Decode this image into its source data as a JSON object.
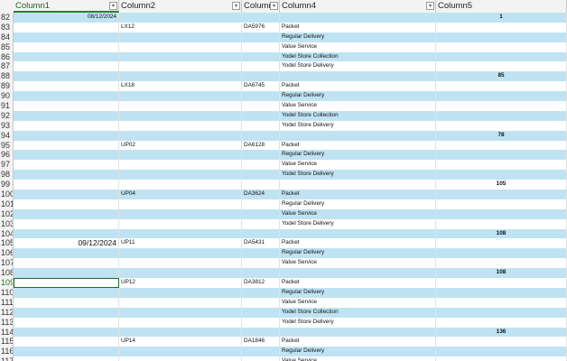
{
  "columns": [
    {
      "label": "Column1"
    },
    {
      "label": "Column2"
    },
    {
      "label": "Column"
    },
    {
      "label": "Column4"
    },
    {
      "label": "Column5"
    }
  ],
  "rows": [
    {
      "n": "82",
      "c1": "08/12/2024",
      "c2": "",
      "c3": "",
      "c4": "",
      "c5": "1",
      "band": true
    },
    {
      "n": "83",
      "c1": "",
      "c2": "LX12",
      "c3": "DA5976",
      "c4": "Packet",
      "c5": "",
      "band": false
    },
    {
      "n": "84",
      "c1": "",
      "c2": "",
      "c3": "",
      "c4": "Regular Delivery",
      "c5": "",
      "band": true
    },
    {
      "n": "85",
      "c1": "",
      "c2": "",
      "c3": "",
      "c4": "Value Service",
      "c5": "",
      "band": false
    },
    {
      "n": "86",
      "c1": "",
      "c2": "",
      "c3": "",
      "c4": "Yodel Store Collection",
      "c5": "",
      "band": true
    },
    {
      "n": "87",
      "c1": "",
      "c2": "",
      "c3": "",
      "c4": "Yodel Store Delivery",
      "c5": "",
      "band": false
    },
    {
      "n": "88",
      "c1": "",
      "c2": "",
      "c3": "",
      "c4": "",
      "c5": "85",
      "band": true
    },
    {
      "n": "89",
      "c1": "",
      "c2": "LX18",
      "c3": "DA6745",
      "c4": "Packet",
      "c5": "",
      "band": false
    },
    {
      "n": "90",
      "c1": "",
      "c2": "",
      "c3": "",
      "c4": "Regular Delivery",
      "c5": "",
      "band": true
    },
    {
      "n": "91",
      "c1": "",
      "c2": "",
      "c3": "",
      "c4": "Value Service",
      "c5": "",
      "band": false
    },
    {
      "n": "92",
      "c1": "",
      "c2": "",
      "c3": "",
      "c4": "Yodel Store Collection",
      "c5": "",
      "band": true
    },
    {
      "n": "93",
      "c1": "",
      "c2": "",
      "c3": "",
      "c4": "Yodel Store Delivery",
      "c5": "",
      "band": false
    },
    {
      "n": "94",
      "c1": "",
      "c2": "",
      "c3": "",
      "c4": "",
      "c5": "78",
      "band": true
    },
    {
      "n": "95",
      "c1": "",
      "c2": "UP02",
      "c3": "DA6128",
      "c4": "Packet",
      "c5": "",
      "band": false
    },
    {
      "n": "96",
      "c1": "",
      "c2": "",
      "c3": "",
      "c4": "Regular Delivery",
      "c5": "",
      "band": true
    },
    {
      "n": "97",
      "c1": "",
      "c2": "",
      "c3": "",
      "c4": "Value Service",
      "c5": "",
      "band": false
    },
    {
      "n": "98",
      "c1": "",
      "c2": "",
      "c3": "",
      "c4": "Yodel Store Delivery",
      "c5": "",
      "band": true
    },
    {
      "n": "99",
      "c1": "",
      "c2": "",
      "c3": "",
      "c4": "",
      "c5": "105",
      "band": false
    },
    {
      "n": "100",
      "c1": "",
      "c2": "UP04",
      "c3": "DA3624",
      "c4": "Packet",
      "c5": "",
      "band": true
    },
    {
      "n": "101",
      "c1": "",
      "c2": "",
      "c3": "",
      "c4": "Regular Delivery",
      "c5": "",
      "band": false
    },
    {
      "n": "102",
      "c1": "",
      "c2": "",
      "c3": "",
      "c4": "Value Service",
      "c5": "",
      "band": true
    },
    {
      "n": "103",
      "c1": "",
      "c2": "",
      "c3": "",
      "c4": "Yodel Store Delivery",
      "c5": "",
      "band": false
    },
    {
      "n": "104",
      "c1": "",
      "c2": "",
      "c3": "",
      "c4": "",
      "c5": "108",
      "band": true
    },
    {
      "n": "105",
      "c1": "09/12/2024",
      "c2": "UP11",
      "c3": "DA5431",
      "c4": "Packet",
      "c5": "",
      "band": false,
      "bigdate": true
    },
    {
      "n": "106",
      "c1": "",
      "c2": "",
      "c3": "",
      "c4": "Regular Delivery",
      "c5": "",
      "band": true
    },
    {
      "n": "107",
      "c1": "",
      "c2": "",
      "c3": "",
      "c4": "Value Service",
      "c5": "",
      "band": false
    },
    {
      "n": "108",
      "c1": "",
      "c2": "",
      "c3": "",
      "c4": "",
      "c5": "108",
      "band": true
    },
    {
      "n": "109",
      "c1": "",
      "c2": "UP12",
      "c3": "DA3812",
      "c4": "Packet",
      "c5": "",
      "band": false,
      "selected": true
    },
    {
      "n": "110",
      "c1": "",
      "c2": "",
      "c3": "",
      "c4": "Regular Delivery",
      "c5": "",
      "band": true
    },
    {
      "n": "111",
      "c1": "",
      "c2": "",
      "c3": "",
      "c4": "Value Service",
      "c5": "",
      "band": false
    },
    {
      "n": "112",
      "c1": "",
      "c2": "",
      "c3": "",
      "c4": "Yodel Store Collection",
      "c5": "",
      "band": true
    },
    {
      "n": "113",
      "c1": "",
      "c2": "",
      "c3": "",
      "c4": "Yodel Store Delivery",
      "c5": "",
      "band": false
    },
    {
      "n": "114",
      "c1": "",
      "c2": "",
      "c3": "",
      "c4": "",
      "c5": "136",
      "band": true
    },
    {
      "n": "115",
      "c1": "",
      "c2": "UP14",
      "c3": "DA1846",
      "c4": "Packet",
      "c5": "",
      "band": false
    },
    {
      "n": "116",
      "c1": "",
      "c2": "",
      "c3": "",
      "c4": "Regular Delivery",
      "c5": "",
      "band": true
    },
    {
      "n": "117",
      "c1": "",
      "c2": "",
      "c3": "",
      "c4": "Value Service",
      "c5": "",
      "band": false
    }
  ]
}
